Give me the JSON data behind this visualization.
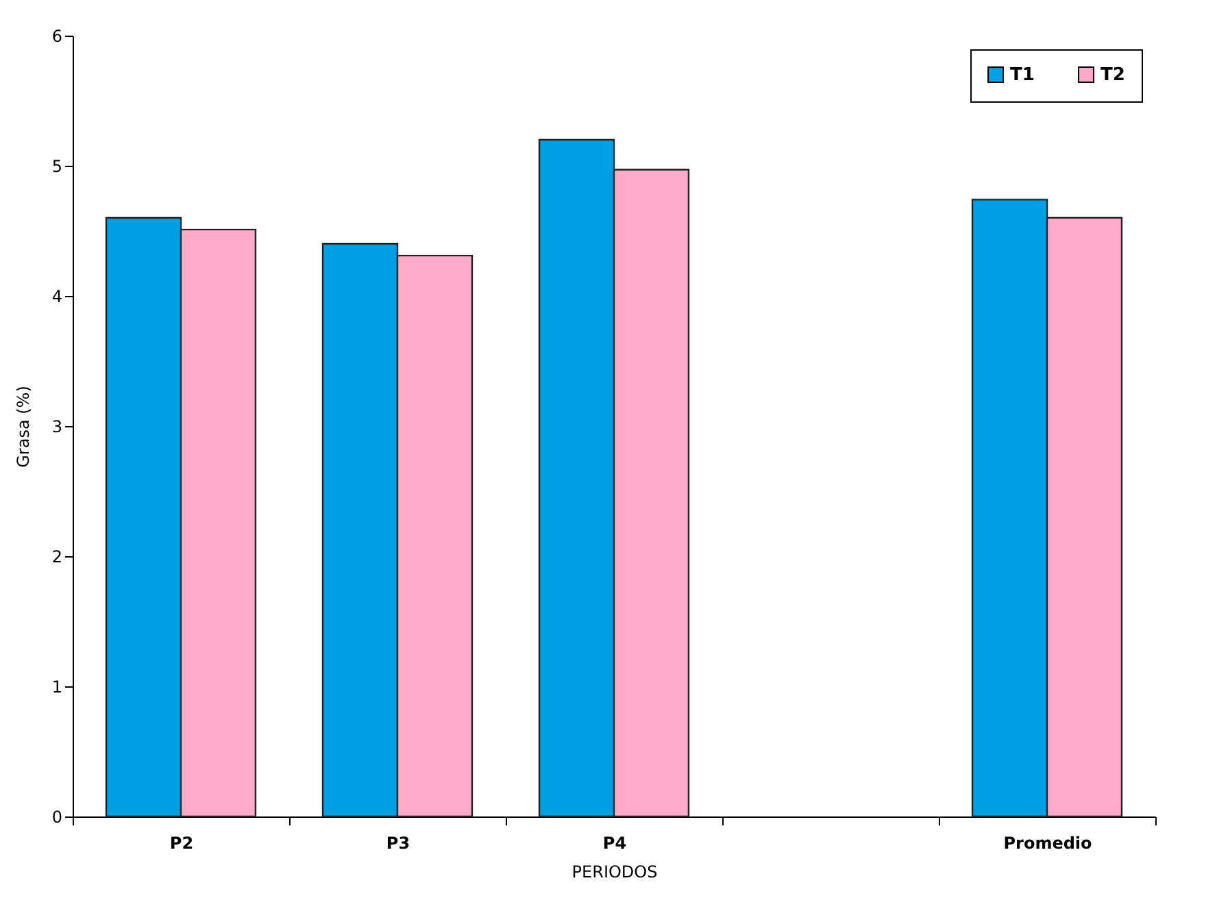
{
  "chart_data": {
    "type": "bar",
    "xlabel": "PERIODOS",
    "ylabel": "Grasa (%)",
    "categories": [
      "P2",
      "P3",
      "P4",
      null,
      "Promedio"
    ],
    "series": [
      {
        "name": "T1",
        "color": "#00a0e4",
        "values": [
          4.6,
          4.4,
          5.2,
          null,
          4.74
        ]
      },
      {
        "name": "T2",
        "color": "#ffaac8",
        "values": [
          4.51,
          4.31,
          4.97,
          null,
          4.6
        ]
      }
    ],
    "ylim": [
      0,
      6
    ],
    "yticks": [
      0,
      1,
      2,
      3,
      4,
      5,
      6
    ],
    "grid": false,
    "legend": "top right"
  }
}
